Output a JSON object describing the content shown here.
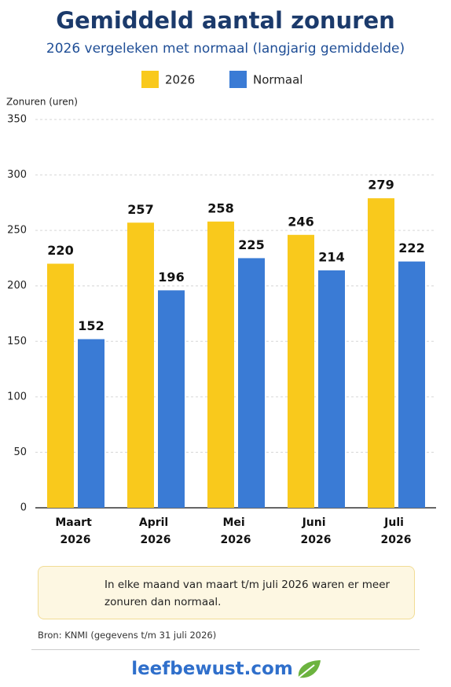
{
  "chart_data": {
    "type": "bar",
    "title": "Gemiddeld aantal zonuren",
    "subtitle": "2026 vergeleken met normaal (langjarig gemiddelde)",
    "y_label": "Zonuren (uren)",
    "categories": [
      "Maart 2026",
      "April 2026",
      "Mei 2026",
      "Juni 2026",
      "Juli 2026"
    ],
    "series": [
      {
        "name": "2026",
        "color": "#f9c91c",
        "values": [
          220,
          257,
          258,
          246,
          279
        ]
      },
      {
        "name": "Normaal",
        "color": "#3a7bd5",
        "values": [
          152,
          196,
          225,
          214,
          222
        ]
      }
    ],
    "ylim": [
      0,
      350
    ],
    "yticks": [
      0,
      50,
      100,
      150,
      200,
      250,
      300,
      350
    ],
    "grid": true,
    "note": "In elke maand van maart t/m juli 2026 waren er meer zonuren dan normaal.",
    "source": "Bron: KNMI (gegevens t/m 31 juli 2026)",
    "footer": "leefbewust.com"
  }
}
